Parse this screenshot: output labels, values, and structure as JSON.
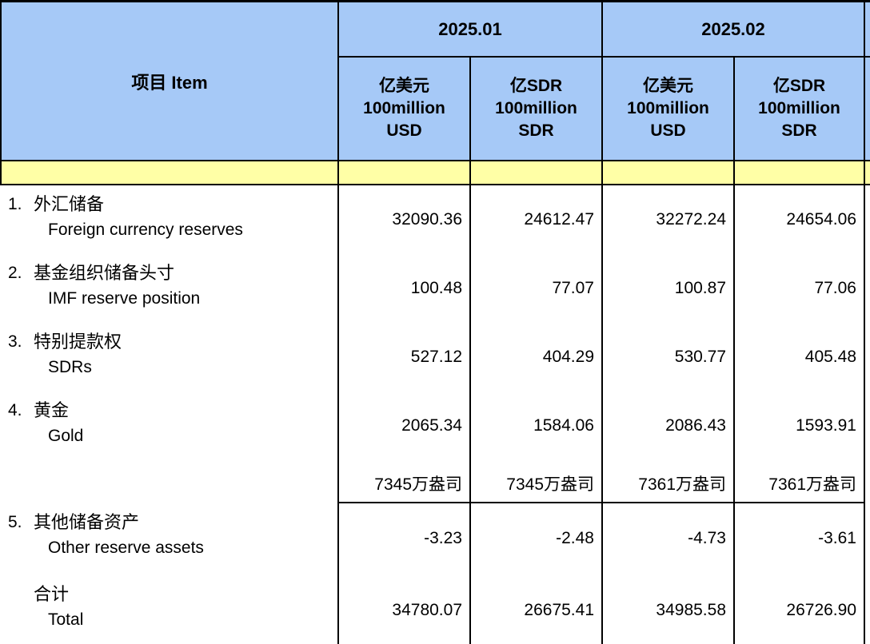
{
  "table": {
    "item_header": "项目  Item",
    "period_groups": [
      {
        "label": "2025.01"
      },
      {
        "label": "2025.02"
      }
    ],
    "unit_headers": [
      {
        "cn": "亿美元",
        "en1": "100million",
        "en2": "USD"
      },
      {
        "cn": "亿SDR",
        "en1": "100million",
        "en2": "SDR"
      },
      {
        "cn": "亿美元",
        "en1": "100million",
        "en2": "USD"
      },
      {
        "cn": "亿SDR",
        "en1": "100million",
        "en2": "SDR"
      }
    ],
    "rows": [
      {
        "no": "1.",
        "cn": "外汇储备",
        "en": "Foreign currency reserves",
        "values": [
          "32090.36",
          "24612.47",
          "32272.24",
          "24654.06"
        ]
      },
      {
        "no": "2.",
        "cn": "基金组织储备头寸",
        "en": "IMF reserve position",
        "values": [
          "100.48",
          "77.07",
          "100.87",
          "77.06"
        ]
      },
      {
        "no": "3.",
        "cn": "特别提款权",
        "en": "SDRs",
        "values": [
          "527.12",
          "404.29",
          "530.77",
          "405.48"
        ]
      },
      {
        "no": "4.",
        "cn": "黄金",
        "en": "Gold",
        "values": [
          "2065.34",
          "1584.06",
          "2086.43",
          "1593.91"
        ]
      },
      {
        "no": "",
        "cn": "",
        "en": "",
        "memo": true,
        "values": [
          "7345万盎司",
          "7345万盎司",
          "7361万盎司",
          "7361万盎司"
        ]
      },
      {
        "no": "5.",
        "cn": "其他储备资产",
        "en": "Other reserve assets",
        "values": [
          "-3.23",
          "-2.48",
          "-4.73",
          "-3.61"
        ]
      },
      {
        "no": "",
        "cn": "合计",
        "en": "Total",
        "total": true,
        "values": [
          "34780.07",
          "26675.41",
          "34985.58",
          "26726.90"
        ]
      }
    ]
  },
  "colors": {
    "header_blue": "#A6C9F7",
    "band_yellow": "#FFFFA6",
    "border": "#000000"
  }
}
